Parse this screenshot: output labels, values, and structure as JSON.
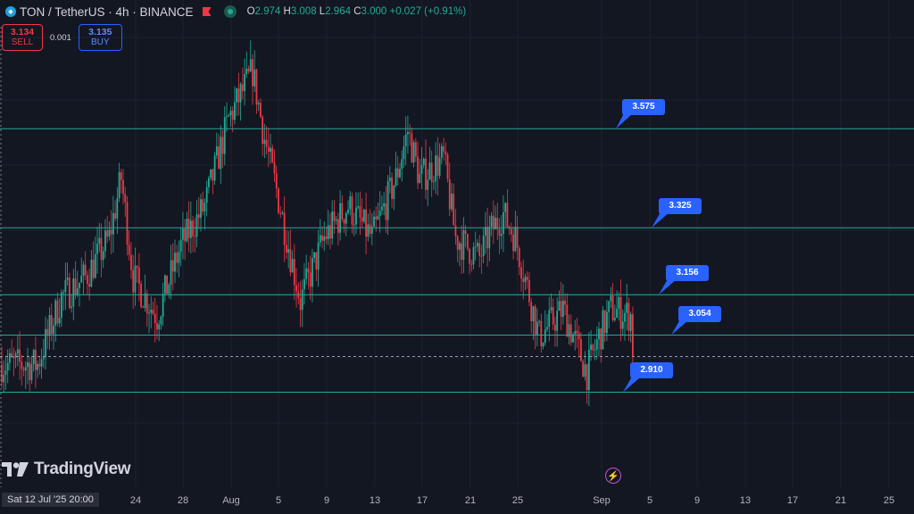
{
  "header": {
    "title": "TON / TetherUS · 4h · BINANCE",
    "ohlc": [
      {
        "k": "O",
        "v": "2.974"
      },
      {
        "k": "H",
        "v": "3.008"
      },
      {
        "k": "L",
        "v": "2.964"
      },
      {
        "k": "C",
        "v": "3.000"
      },
      {
        "k": "",
        "v": "+0.027 (+0.91%)"
      }
    ]
  },
  "trade": {
    "sell_price": "3.134",
    "sell_label": "SELL",
    "spread": "0.001",
    "buy_price": "3.135",
    "buy_label": "BUY"
  },
  "brand": {
    "name": "TradingView"
  },
  "colors": {
    "up": "#22ab94",
    "down": "#f23645",
    "level": "#26a69a",
    "label_bg": "#2962ff",
    "bg": "#131722"
  },
  "chart_data": {
    "type": "candlestick",
    "y_range": [
      2.67,
      3.9
    ],
    "levels": [
      {
        "value": 3.575,
        "label": "3.575"
      },
      {
        "value": 3.325,
        "label": "3.325"
      },
      {
        "value": 3.156,
        "label": "3.156"
      },
      {
        "value": 3.054,
        "label": "3.054"
      },
      {
        "value": 2.91,
        "label": "2.910"
      }
    ],
    "current_price": 3.0,
    "x_ticks": [
      "Sat 12 Jul '25  20:00",
      "24",
      "28",
      "Aug",
      "5",
      "9",
      "13",
      "17",
      "21",
      "25",
      "Sep",
      "5",
      "9",
      "13",
      "17",
      "21",
      "25"
    ],
    "anchors": [
      {
        "d": 0,
        "p": 2.98
      },
      {
        "d": 3,
        "p": 2.98
      },
      {
        "d": 5,
        "p": 3.15
      },
      {
        "d": 7,
        "p": 3.2
      },
      {
        "d": 9,
        "p": 3.3
      },
      {
        "d": 10,
        "p": 3.45
      },
      {
        "d": 11,
        "p": 3.2
      },
      {
        "d": 13,
        "p": 3.1
      },
      {
        "d": 15,
        "p": 3.28
      },
      {
        "d": 17,
        "p": 3.38
      },
      {
        "d": 19,
        "p": 3.6
      },
      {
        "d": 21,
        "p": 3.72
      },
      {
        "d": 22,
        "p": 3.55
      },
      {
        "d": 23,
        "p": 3.42
      },
      {
        "d": 25,
        "p": 3.14
      },
      {
        "d": 27,
        "p": 3.3
      },
      {
        "d": 29,
        "p": 3.38
      },
      {
        "d": 31,
        "p": 3.3
      },
      {
        "d": 33,
        "p": 3.45
      },
      {
        "d": 34,
        "p": 3.57
      },
      {
        "d": 35,
        "p": 3.45
      },
      {
        "d": 37,
        "p": 3.5
      },
      {
        "d": 38,
        "p": 3.3
      },
      {
        "d": 40,
        "p": 3.25
      },
      {
        "d": 41,
        "p": 3.32
      },
      {
        "d": 42,
        "p": 3.36
      },
      {
        "d": 43,
        "p": 3.3
      },
      {
        "d": 45,
        "p": 3.05
      },
      {
        "d": 47,
        "p": 3.12
      },
      {
        "d": 49,
        "p": 2.96
      },
      {
        "d": 50,
        "p": 3.05
      },
      {
        "d": 51,
        "p": 3.12
      },
      {
        "d": 53,
        "p": 3.1
      }
    ]
  }
}
